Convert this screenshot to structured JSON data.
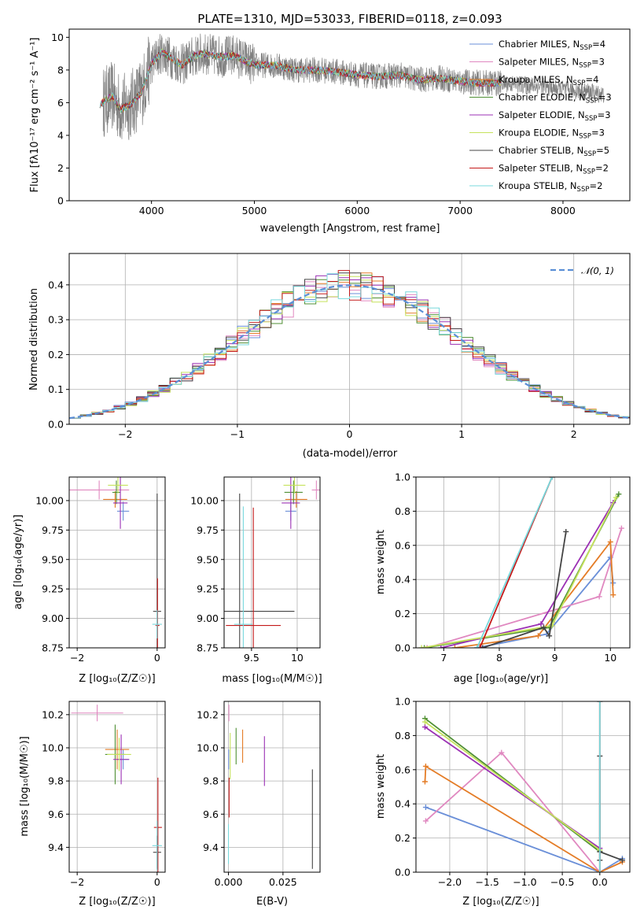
{
  "colors": {
    "Chabrier MILES": "#6a8fd8",
    "Salpeter MILES": "#e088c0",
    "Kroupa MILES": "#e47c26",
    "Chabrier ELODIE": "#4f8f34",
    "Salpeter ELODIE": "#9b30b4",
    "Kroupa ELODIE": "#c5e25c",
    "Chabrier STELIB": "#444444",
    "Salpeter STELIB": "#c41a1a",
    "Kroupa STELIB": "#78d8dc",
    "data": "#808080",
    "normal": "#5b8fd6"
  },
  "chart_data": [
    {
      "id": "spectrum",
      "type": "line",
      "title": "PLATE=1310, MJD=53033, FIBERID=0118, z=0.093",
      "xlabel": "wavelength [Angstrom, rest frame]",
      "ylabel": "Flux [fλ10⁻¹⁷ erg cm⁻² s⁻¹ A⁻¹]",
      "xlim": [
        3200,
        8650
      ],
      "ylim": [
        0,
        10.5
      ],
      "xticks": [
        4000,
        5000,
        6000,
        7000,
        8000
      ],
      "yticks": [
        0,
        2,
        4,
        6,
        8,
        10
      ],
      "legend_position": "upper right",
      "legend": [
        "Chabrier MILES, N_SSP=4",
        "Salpeter MILES, N_SSP=3",
        "Kroupa MILES, N_SSP=4",
        "Chabrier ELODIE, N_SSP=3",
        "Salpeter ELODIE, N_SSP=3",
        "Kroupa ELODIE, N_SSP=3",
        "Chabrier STELIB, N_SSP=5",
        "Salpeter STELIB, N_SSP=2",
        "Kroupa STELIB, N_SSP=2"
      ],
      "continuum": {
        "x": [
          3500,
          3620,
          3700,
          3800,
          3900,
          4000,
          4100,
          4200,
          4300,
          4400,
          4500,
          4600,
          4700,
          4800,
          4900,
          5000,
          5200,
          5400,
          5600,
          5800,
          6000,
          6200,
          6400,
          6600,
          6800,
          7000,
          7200,
          7400,
          7600,
          7800,
          8000,
          8200,
          8400
        ],
        "y": [
          5.9,
          6.4,
          5.6,
          5.9,
          6.6,
          8.4,
          9.1,
          8.7,
          8.3,
          8.8,
          9.0,
          8.9,
          8.8,
          8.9,
          8.6,
          8.3,
          8.3,
          8.0,
          8.0,
          7.9,
          7.7,
          7.6,
          7.7,
          7.4,
          7.5,
          7.3,
          7.2,
          7.2,
          7.1,
          7.0,
          6.8,
          6.7,
          6.5
        ]
      },
      "model_wavelength_range": [
        3500,
        7400
      ],
      "data_wavelength_range": [
        3530,
        8400
      ]
    },
    {
      "id": "residuals",
      "type": "line",
      "xlabel": "(data-model)/error",
      "ylabel": "Normed distribution",
      "xlim": [
        -2.5,
        2.5
      ],
      "ylim": [
        0,
        0.49
      ],
      "xticks": [
        -2,
        -1,
        0,
        1,
        2
      ],
      "yticks": [
        0.0,
        0.1,
        0.2,
        0.3,
        0.4
      ],
      "legend": [
        "𝒩(0, 1)"
      ],
      "bin_width": 0.1
    },
    {
      "id": "age-vs-Z",
      "type": "scatter",
      "xlabel": "Z [log₁₀(Z/Z☉)]",
      "ylabel": "age  [log₁₀(age/yr)]",
      "xlim": [
        -2.2,
        0.2
      ],
      "ylim": [
        8.75,
        10.2
      ],
      "xticks": [
        -2,
        0
      ],
      "yticks": [
        8.75,
        9.0,
        9.25,
        9.5,
        9.75,
        10.0
      ],
      "points": [
        {
          "model": "Chabrier MILES",
          "x": -0.85,
          "y": 9.91,
          "xerr": 0.15,
          "yerr": 0.08
        },
        {
          "model": "Salpeter MILES",
          "x": -1.45,
          "y": 10.09,
          "xerr": 0.75,
          "yerr": 0.08
        },
        {
          "model": "Kroupa MILES",
          "x": -1.05,
          "y": 10.01,
          "xerr": 0.3,
          "yerr": 0.07
        },
        {
          "model": "Chabrier ELODIE",
          "x": -1.02,
          "y": 10.07,
          "xerr": 0.1,
          "yerr": 0.1
        },
        {
          "model": "Salpeter ELODIE",
          "x": -0.92,
          "y": 9.98,
          "xerr": 0.18,
          "yerr": 0.22
        },
        {
          "model": "Kroupa ELODIE",
          "x": -0.98,
          "y": 10.13,
          "xerr": 0.25,
          "yerr": 0.07
        },
        {
          "model": "Chabrier STELIB",
          "x": 0.0,
          "y": 9.06,
          "xerr": 0.1,
          "yerr": 1.0
        },
        {
          "model": "Salpeter STELIB",
          "x": 0.01,
          "y": 8.94,
          "xerr": 0.05,
          "yerr": 0.4
        },
        {
          "model": "Kroupa STELIB",
          "x": 0.0,
          "y": 8.95,
          "xerr": 0.12,
          "yerr": 0.12
        }
      ]
    },
    {
      "id": "age-vs-mass",
      "type": "scatter",
      "xlabel": "mass [log₁₀(M/M☉)]",
      "ylabel": "",
      "xlim": [
        9.2,
        10.25
      ],
      "ylim": [
        8.75,
        10.2
      ],
      "xticks": [
        9.5,
        10.0
      ],
      "yticks": [
        8.75,
        9.0,
        9.25,
        9.5,
        9.75,
        10.0
      ],
      "points": [
        {
          "model": "Chabrier MILES",
          "x": 9.93,
          "y": 9.91,
          "xerr": 0.06,
          "yerr": 0.08
        },
        {
          "model": "Salpeter MILES",
          "x": 10.21,
          "y": 10.09,
          "xerr": 0.05,
          "yerr": 0.08
        },
        {
          "model": "Kroupa MILES",
          "x": 9.99,
          "y": 10.01,
          "xerr": 0.12,
          "yerr": 0.07
        },
        {
          "model": "Chabrier ELODIE",
          "x": 9.96,
          "y": 10.07,
          "xerr": 0.1,
          "yerr": 0.1
        },
        {
          "model": "Salpeter ELODIE",
          "x": 9.93,
          "y": 9.98,
          "xerr": 0.1,
          "yerr": 0.22
        },
        {
          "model": "Kroupa ELODIE",
          "x": 9.97,
          "y": 10.13,
          "xerr": 0.12,
          "yerr": 0.07
        },
        {
          "model": "Chabrier STELIB",
          "x": 9.37,
          "y": 9.06,
          "xerr": 0.6,
          "yerr": 1.0
        },
        {
          "model": "Salpeter STELIB",
          "x": 9.52,
          "y": 8.94,
          "xerr": 0.3,
          "yerr": 1.0
        },
        {
          "model": "Kroupa STELIB",
          "x": 9.41,
          "y": 8.95,
          "xerr": 0.1,
          "yerr": 1.0
        }
      ]
    },
    {
      "id": "weights-vs-age",
      "type": "line",
      "xlabel": "age  [log₁₀(age/yr)]",
      "ylabel": "mass weight",
      "xlim": [
        6.5,
        10.35
      ],
      "ylim": [
        0,
        1.0
      ],
      "xticks": [
        7,
        8,
        9,
        10
      ],
      "yticks": [
        0.0,
        0.2,
        0.4,
        0.6,
        0.8,
        1.0
      ],
      "series": [
        {
          "model": "Chabrier MILES",
          "x": [
            7.6,
            8.85,
            10.0,
            10.05
          ],
          "y": [
            0.0,
            0.08,
            0.53,
            0.38
          ]
        },
        {
          "model": "Salpeter MILES",
          "x": [
            6.7,
            9.8,
            10.2
          ],
          "y": [
            0.0,
            0.3,
            0.7
          ]
        },
        {
          "model": "Kroupa MILES",
          "x": [
            7.2,
            8.7,
            10.0,
            10.05
          ],
          "y": [
            0.0,
            0.07,
            0.62,
            0.31
          ]
        },
        {
          "model": "Chabrier ELODIE",
          "x": [
            6.65,
            8.9,
            10.15
          ],
          "y": [
            0.0,
            0.12,
            0.9
          ]
        },
        {
          "model": "Salpeter ELODIE",
          "x": [
            6.95,
            8.75,
            10.05
          ],
          "y": [
            0.0,
            0.14,
            0.85
          ]
        },
        {
          "model": "Kroupa ELODIE",
          "x": [
            6.6,
            8.95,
            10.1
          ],
          "y": [
            0.0,
            0.13,
            0.88
          ]
        },
        {
          "model": "Chabrier STELIB",
          "x": [
            7.7,
            8.8,
            8.9,
            9.2
          ],
          "y": [
            0.0,
            0.12,
            0.07,
            0.68
          ]
        },
        {
          "model": "Salpeter STELIB",
          "x": [
            7.65,
            8.95
          ],
          "y": [
            0.0,
            1.0
          ]
        },
        {
          "model": "Kroupa STELIB",
          "x": [
            7.6,
            8.95
          ],
          "y": [
            0.0,
            1.0
          ]
        }
      ]
    },
    {
      "id": "mass-vs-Z",
      "type": "scatter",
      "xlabel": "Z [log₁₀(Z/Z☉)]",
      "ylabel": "mass [log₁₀(M/M☉)]",
      "xlim": [
        -2.2,
        0.2
      ],
      "ylim": [
        9.25,
        10.28
      ],
      "xticks": [
        -2,
        0
      ],
      "yticks": [
        9.4,
        9.6,
        9.8,
        10.0,
        10.2
      ],
      "points": [
        {
          "model": "Chabrier MILES",
          "x": -0.85,
          "y": 9.93,
          "xerr": 0.15,
          "yerr": 0.06
        },
        {
          "model": "Salpeter MILES",
          "x": -1.5,
          "y": 10.21,
          "xerr": 0.65,
          "yerr": 0.05
        },
        {
          "model": "Kroupa MILES",
          "x": -1.0,
          "y": 9.99,
          "xerr": 0.3,
          "yerr": 0.12
        },
        {
          "model": "Chabrier ELODIE",
          "x": -1.05,
          "y": 9.96,
          "xerr": 0.25,
          "yerr": 0.18
        },
        {
          "model": "Salpeter ELODIE",
          "x": -0.9,
          "y": 9.93,
          "xerr": 0.2,
          "yerr": 0.15
        },
        {
          "model": "Kroupa ELODIE",
          "x": -0.95,
          "y": 9.96,
          "xerr": 0.3,
          "yerr": 0.1
        },
        {
          "model": "Chabrier STELIB",
          "x": 0.0,
          "y": 9.37,
          "xerr": 0.1,
          "yerr": 0.1
        },
        {
          "model": "Salpeter STELIB",
          "x": 0.02,
          "y": 9.52,
          "xerr": 0.1,
          "yerr": 0.3
        },
        {
          "model": "Kroupa STELIB",
          "x": 0.0,
          "y": 9.41,
          "xerr": 0.12,
          "yerr": 0.15
        }
      ]
    },
    {
      "id": "mass-vs-EBV",
      "type": "scatter",
      "xlabel": "E(B-V)",
      "ylabel": "",
      "xlim": [
        -0.002,
        0.042
      ],
      "ylim": [
        9.25,
        10.28
      ],
      "xticks": [
        0.0,
        0.025
      ],
      "xticklabels": [
        "0.000",
        "0.025"
      ],
      "yticks": [
        9.4,
        9.6,
        9.8,
        10.0,
        10.2
      ],
      "points": [
        {
          "model": "Chabrier MILES",
          "x": 0.0001,
          "y": 9.93,
          "xerr": 0,
          "yerr": 0.06
        },
        {
          "model": "Salpeter MILES",
          "x": 0.0002,
          "y": 10.21,
          "xerr": 0,
          "yerr": 0.05
        },
        {
          "model": "Kroupa MILES",
          "x": 0.0065,
          "y": 10.01,
          "xerr": 0,
          "yerr": 0.1
        },
        {
          "model": "Chabrier ELODIE",
          "x": 0.0035,
          "y": 10.01,
          "xerr": 0,
          "yerr": 0.11
        },
        {
          "model": "Salpeter ELODIE",
          "x": 0.0165,
          "y": 9.92,
          "xerr": 0,
          "yerr": 0.15
        },
        {
          "model": "Kroupa ELODIE",
          "x": 0.0008,
          "y": 9.95,
          "xerr": 0,
          "yerr": 0.14
        },
        {
          "model": "Chabrier STELIB",
          "x": 0.0385,
          "y": 9.57,
          "xerr": 0,
          "yerr": 0.3
        },
        {
          "model": "Salpeter STELIB",
          "x": 0.0003,
          "y": 9.7,
          "xerr": 0,
          "yerr": 0.12
        },
        {
          "model": "Kroupa STELIB",
          "x": 0.0,
          "y": 9.42,
          "xerr": 0,
          "yerr": 0.12
        }
      ]
    },
    {
      "id": "weights-vs-Z",
      "type": "line",
      "xlabel": "Z [log₁₀(Z/Z☉)]",
      "ylabel": "mass weight",
      "xlim": [
        -2.45,
        0.4
      ],
      "ylim": [
        0,
        1.0
      ],
      "xticks": [
        -2.0,
        -1.5,
        -1.0,
        -0.5,
        0.0
      ],
      "xticklabels": [
        "−2.0",
        "−1.5",
        "−1.0",
        "−0.5",
        "0.0"
      ],
      "yticks": [
        0.0,
        0.2,
        0.4,
        0.6,
        0.8,
        1.0
      ],
      "series": [
        {
          "model": "Chabrier MILES",
          "x": [
            -2.32,
            0.0,
            0.3
          ],
          "y": [
            0.38,
            0.0,
            0.08
          ]
        },
        {
          "model": "Salpeter MILES",
          "x": [
            -2.32,
            -1.31,
            0.0
          ],
          "y": [
            0.3,
            0.7,
            0.0
          ]
        },
        {
          "model": "Kroupa MILES",
          "x": [
            -2.33,
            -2.32,
            0.0,
            0.3
          ],
          "y": [
            0.53,
            0.62,
            0.0,
            0.06
          ]
        },
        {
          "model": "Chabrier ELODIE",
          "x": [
            -2.33,
            0.0
          ],
          "y": [
            0.9,
            0.12
          ]
        },
        {
          "model": "Salpeter ELODIE",
          "x": [
            -2.33,
            0.0
          ],
          "y": [
            0.85,
            0.14
          ]
        },
        {
          "model": "Kroupa ELODIE",
          "x": [
            -2.33,
            0.0
          ],
          "y": [
            0.88,
            0.13
          ]
        },
        {
          "model": "Chabrier STELIB",
          "x": [
            0.0,
            0.0,
            0.0,
            0.3
          ],
          "y": [
            0.68,
            0.07,
            0.12,
            0.07
          ]
        },
        {
          "model": "Salpeter STELIB",
          "x": [
            0.0,
            0.0
          ],
          "y": [
            1.0,
            0.0
          ]
        },
        {
          "model": "Kroupa STELIB",
          "x": [
            0.0,
            0.0
          ],
          "y": [
            1.0,
            0.0
          ]
        }
      ]
    }
  ]
}
